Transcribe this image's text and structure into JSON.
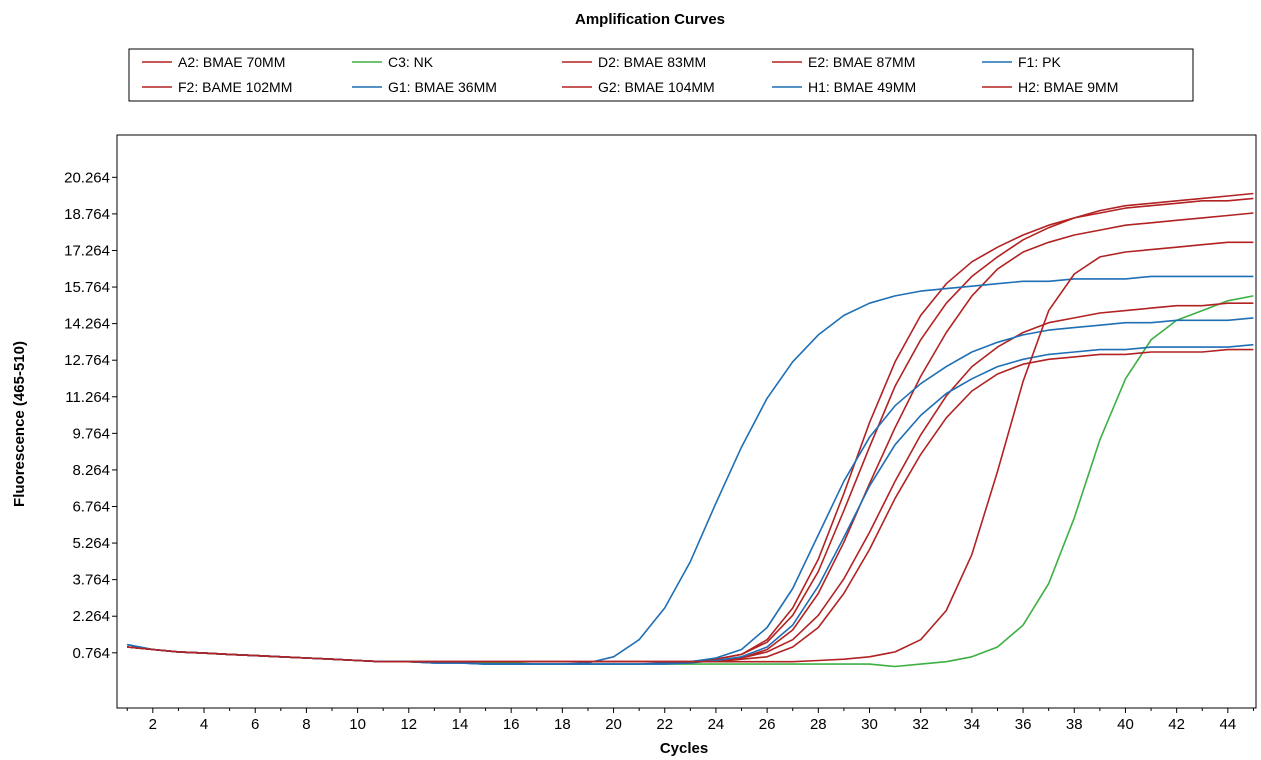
{
  "chart_data": {
    "type": "line",
    "title": "Amplification Curves",
    "xlabel": "Cycles",
    "ylabel": "Fluorescence (465-510)",
    "xlim": [
      0.6,
      45.1
    ],
    "ylim": [
      -1.5,
      22.0
    ],
    "x_ticks": [
      2,
      4,
      6,
      8,
      10,
      12,
      14,
      16,
      18,
      20,
      22,
      24,
      26,
      28,
      30,
      32,
      34,
      36,
      38,
      40,
      42,
      44
    ],
    "y_ticks": [
      0.764,
      2.264,
      3.764,
      5.264,
      6.764,
      8.264,
      9.764,
      11.264,
      12.764,
      14.264,
      15.764,
      17.264,
      18.764,
      20.264
    ],
    "y_tick_labels": [
      "0.764",
      "2.264",
      "3.764",
      "5.264",
      "6.764",
      "8.264",
      "9.764",
      "11.264",
      "12.764",
      "14.264",
      "15.764",
      "17.264",
      "18.764",
      "20.264"
    ],
    "grid": false,
    "legend_position": "top",
    "x": [
      1,
      2,
      3,
      4,
      5,
      6,
      7,
      8,
      9,
      10,
      11,
      12,
      13,
      14,
      15,
      16,
      17,
      18,
      19,
      20,
      21,
      22,
      23,
      24,
      25,
      26,
      27,
      28,
      29,
      30,
      31,
      32,
      33,
      34,
      35,
      36,
      37,
      38,
      39,
      40,
      41,
      42,
      43,
      44,
      45
    ],
    "series": [
      {
        "name": "A2: BMAE 70MM",
        "color": "#b22222",
        "values": [
          1.0,
          0.9,
          0.8,
          0.75,
          0.7,
          0.65,
          0.6,
          0.55,
          0.5,
          0.45,
          0.4,
          0.4,
          0.4,
          0.4,
          0.4,
          0.4,
          0.4,
          0.4,
          0.4,
          0.4,
          0.4,
          0.4,
          0.4,
          0.5,
          0.7,
          1.2,
          2.3,
          4.1,
          6.6,
          9.2,
          11.7,
          13.6,
          15.1,
          16.2,
          17.0,
          17.7,
          18.2,
          18.6,
          18.9,
          19.1,
          19.2,
          19.3,
          19.4,
          19.5,
          19.6
        ]
      },
      {
        "name": "C3: NK",
        "color": "#3cb043",
        "values": [
          1.0,
          0.9,
          0.8,
          0.75,
          0.7,
          0.65,
          0.6,
          0.55,
          0.5,
          0.45,
          0.4,
          0.4,
          0.4,
          0.35,
          0.35,
          0.35,
          0.3,
          0.3,
          0.3,
          0.3,
          0.3,
          0.3,
          0.3,
          0.3,
          0.3,
          0.3,
          0.3,
          0.3,
          0.3,
          0.3,
          0.2,
          0.3,
          0.4,
          0.6,
          1.0,
          1.9,
          3.6,
          6.3,
          9.5,
          12.0,
          13.6,
          14.4,
          14.8,
          15.2,
          15.4
        ]
      },
      {
        "name": "D2: BMAE 83MM",
        "color": "#b22222",
        "values": [
          1.0,
          0.9,
          0.8,
          0.75,
          0.7,
          0.65,
          0.6,
          0.55,
          0.5,
          0.45,
          0.4,
          0.4,
          0.4,
          0.4,
          0.4,
          0.4,
          0.4,
          0.4,
          0.4,
          0.4,
          0.4,
          0.4,
          0.4,
          0.5,
          0.7,
          1.3,
          2.6,
          4.6,
          7.3,
          10.2,
          12.7,
          14.6,
          15.9,
          16.8,
          17.4,
          17.9,
          18.3,
          18.6,
          18.8,
          19.0,
          19.1,
          19.2,
          19.3,
          19.3,
          19.4
        ]
      },
      {
        "name": "E2: BMAE 87MM",
        "color": "#b22222",
        "values": [
          1.0,
          0.9,
          0.8,
          0.75,
          0.7,
          0.65,
          0.6,
          0.55,
          0.5,
          0.45,
          0.4,
          0.4,
          0.4,
          0.4,
          0.4,
          0.4,
          0.4,
          0.4,
          0.4,
          0.4,
          0.4,
          0.4,
          0.4,
          0.45,
          0.55,
          0.9,
          1.7,
          3.2,
          5.3,
          7.7,
          10.0,
          12.1,
          13.9,
          15.4,
          16.5,
          17.2,
          17.6,
          17.9,
          18.1,
          18.3,
          18.4,
          18.5,
          18.6,
          18.7,
          18.8
        ]
      },
      {
        "name": "F1: PK",
        "color": "#1f6fb5",
        "values": [
          1.1,
          0.9,
          0.8,
          0.75,
          0.7,
          0.65,
          0.6,
          0.55,
          0.5,
          0.45,
          0.4,
          0.4,
          0.35,
          0.35,
          0.3,
          0.3,
          0.3,
          0.3,
          0.35,
          0.6,
          1.3,
          2.6,
          4.5,
          6.9,
          9.2,
          11.2,
          12.7,
          13.8,
          14.6,
          15.1,
          15.4,
          15.6,
          15.7,
          15.8,
          15.9,
          16.0,
          16.0,
          16.1,
          16.1,
          16.1,
          16.2,
          16.2,
          16.2,
          16.2,
          16.2
        ]
      },
      {
        "name": "F2: BAME 102MM",
        "color": "#b22222",
        "values": [
          1.0,
          0.9,
          0.8,
          0.75,
          0.7,
          0.65,
          0.6,
          0.55,
          0.5,
          0.45,
          0.4,
          0.4,
          0.4,
          0.4,
          0.4,
          0.4,
          0.4,
          0.4,
          0.4,
          0.4,
          0.4,
          0.4,
          0.4,
          0.45,
          0.55,
          0.8,
          1.3,
          2.3,
          3.8,
          5.7,
          7.8,
          9.7,
          11.3,
          12.5,
          13.3,
          13.9,
          14.3,
          14.5,
          14.7,
          14.8,
          14.9,
          15.0,
          15.0,
          15.1,
          15.1
        ]
      },
      {
        "name": "G1: BMAE 36MM",
        "color": "#1f6fb5",
        "values": [
          1.1,
          0.9,
          0.8,
          0.75,
          0.7,
          0.65,
          0.6,
          0.55,
          0.5,
          0.45,
          0.4,
          0.4,
          0.35,
          0.35,
          0.3,
          0.3,
          0.3,
          0.3,
          0.3,
          0.3,
          0.3,
          0.35,
          0.4,
          0.55,
          0.9,
          1.8,
          3.4,
          5.6,
          7.8,
          9.6,
          10.9,
          11.8,
          12.5,
          13.1,
          13.5,
          13.8,
          14.0,
          14.1,
          14.2,
          14.3,
          14.3,
          14.4,
          14.4,
          14.4,
          14.5
        ]
      },
      {
        "name": "G2: BMAE 104MM",
        "color": "#b22222",
        "values": [
          1.0,
          0.9,
          0.8,
          0.75,
          0.7,
          0.65,
          0.6,
          0.55,
          0.5,
          0.45,
          0.4,
          0.4,
          0.4,
          0.4,
          0.4,
          0.4,
          0.4,
          0.4,
          0.4,
          0.4,
          0.4,
          0.4,
          0.4,
          0.4,
          0.5,
          0.6,
          1.0,
          1.8,
          3.2,
          5.0,
          7.1,
          8.9,
          10.4,
          11.5,
          12.2,
          12.6,
          12.8,
          12.9,
          13.0,
          13.0,
          13.1,
          13.1,
          13.1,
          13.2,
          13.2
        ]
      },
      {
        "name": "H1: BMAE 49MM",
        "color": "#1f6fb5",
        "values": [
          1.1,
          0.9,
          0.8,
          0.75,
          0.7,
          0.65,
          0.6,
          0.55,
          0.5,
          0.45,
          0.4,
          0.4,
          0.35,
          0.35,
          0.3,
          0.3,
          0.3,
          0.3,
          0.3,
          0.3,
          0.3,
          0.3,
          0.35,
          0.45,
          0.6,
          1.0,
          1.9,
          3.5,
          5.5,
          7.6,
          9.3,
          10.5,
          11.4,
          12.0,
          12.5,
          12.8,
          13.0,
          13.1,
          13.2,
          13.2,
          13.3,
          13.3,
          13.3,
          13.3,
          13.4
        ]
      },
      {
        "name": "H2: BMAE 9MM",
        "color": "#b22222",
        "values": [
          1.0,
          0.9,
          0.8,
          0.75,
          0.7,
          0.65,
          0.6,
          0.55,
          0.5,
          0.45,
          0.4,
          0.4,
          0.4,
          0.4,
          0.4,
          0.4,
          0.4,
          0.4,
          0.4,
          0.4,
          0.4,
          0.4,
          0.4,
          0.4,
          0.4,
          0.4,
          0.4,
          0.45,
          0.5,
          0.6,
          0.8,
          1.3,
          2.5,
          4.8,
          8.2,
          11.9,
          14.8,
          16.3,
          17.0,
          17.2,
          17.3,
          17.4,
          17.5,
          17.6,
          17.6
        ]
      }
    ]
  }
}
